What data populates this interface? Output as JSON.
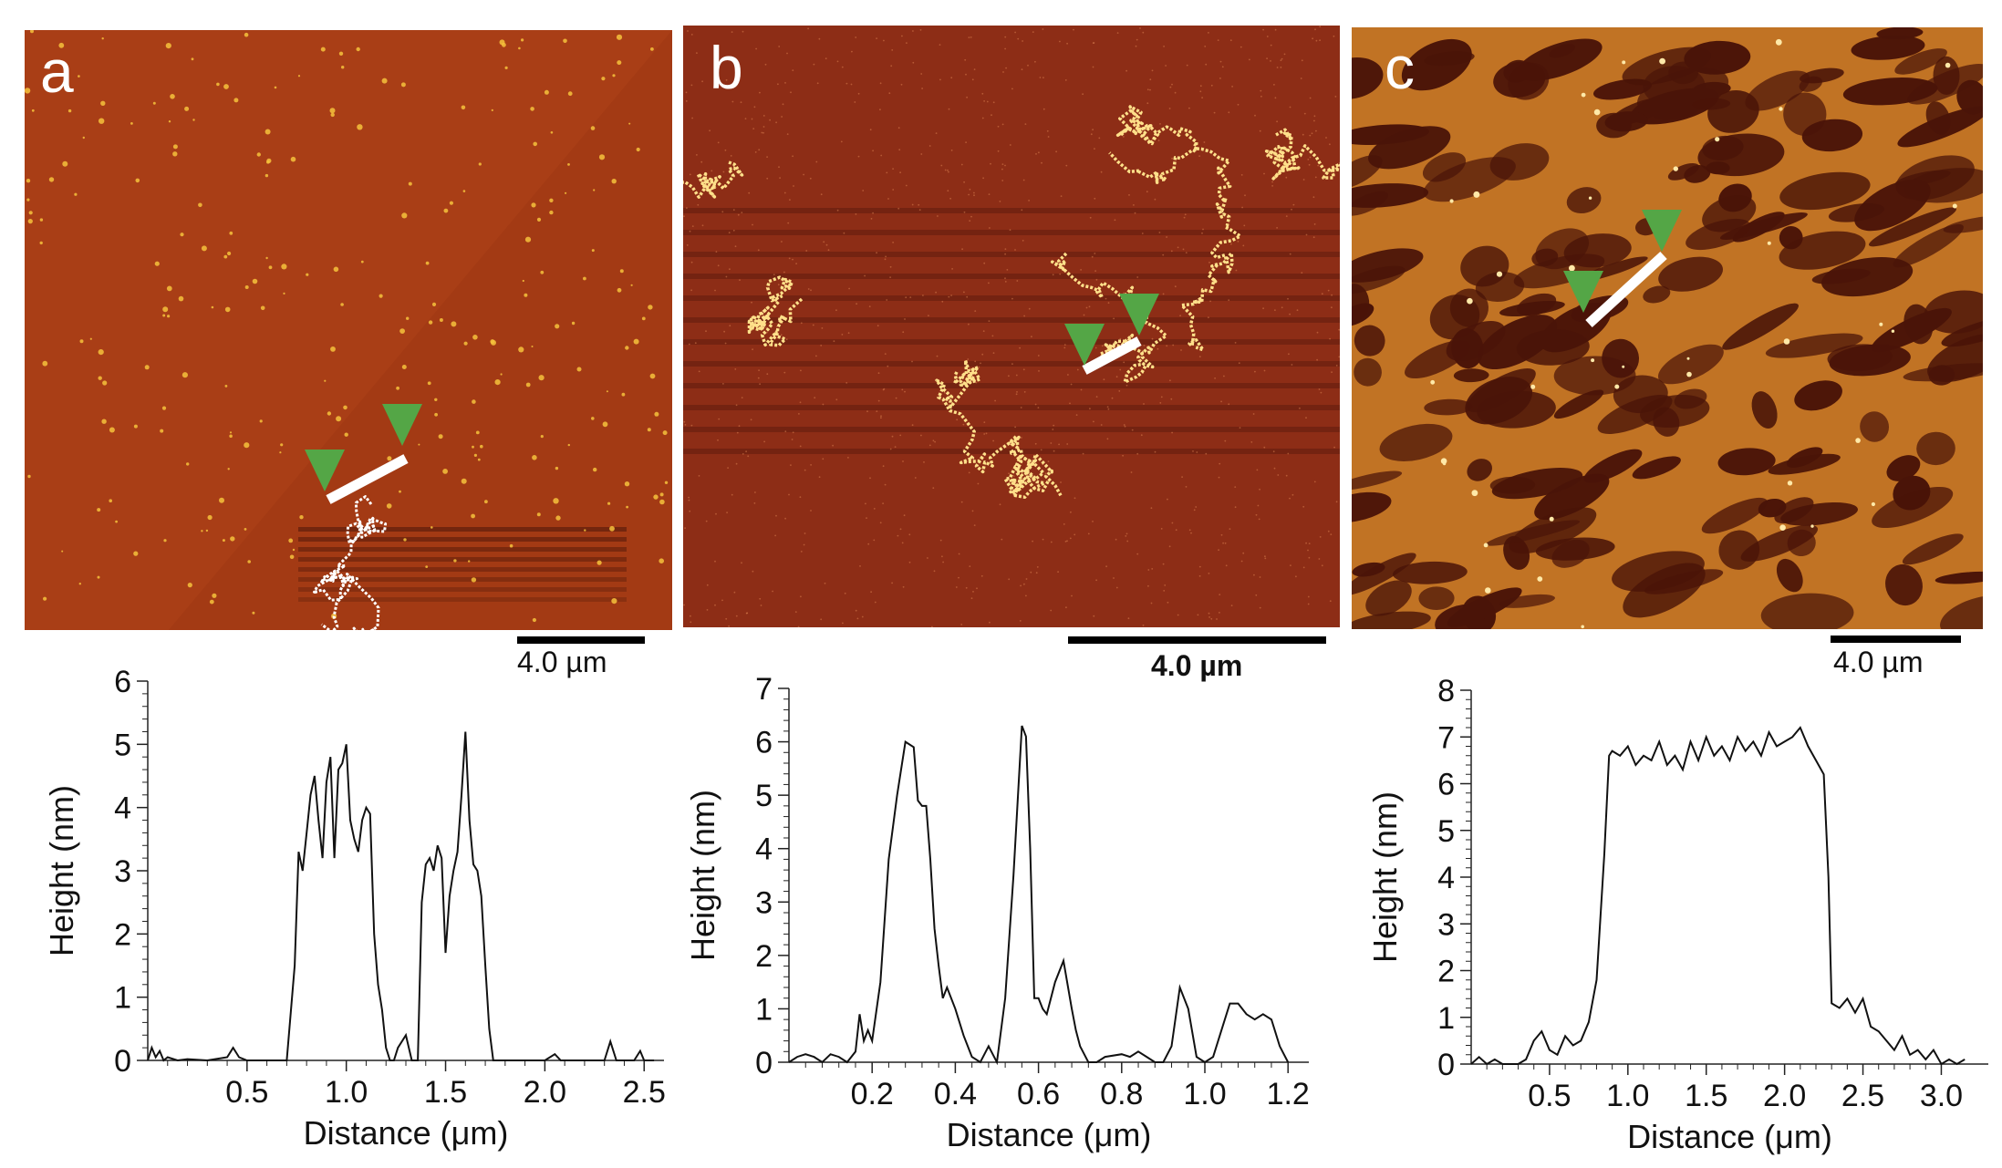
{
  "figure": {
    "panels": [
      {
        "letter": "a",
        "scale_label": "4.0 µm",
        "colors": {
          "background": "#a33a14",
          "feature": "#f6c23c",
          "marker": "#54a646",
          "line": "#ffffff"
        },
        "icons": [
          "triangle-marker-icon",
          "triangle-marker-icon"
        ]
      },
      {
        "letter": "b",
        "scale_label": "4.0 µm",
        "colors": {
          "background": "#8d2d16",
          "feature": "#ffe08a",
          "marker": "#54a646",
          "line": "#ffffff"
        },
        "icons": [
          "triangle-marker-icon",
          "triangle-marker-icon"
        ]
      },
      {
        "letter": "c",
        "scale_label": "4.0 µm",
        "colors": {
          "background": "#c17324",
          "feature": "#4a1408",
          "marker": "#54a646",
          "line": "#ffffff"
        },
        "icons": [
          "triangle-marker-icon",
          "triangle-marker-icon"
        ]
      }
    ]
  },
  "chart_data": [
    {
      "type": "line",
      "xlabel": "Distance (μm)",
      "ylabel": "Height (nm)",
      "xlim": [
        0,
        2.6
      ],
      "ylim": [
        0,
        6
      ],
      "x_ticks": [
        0.5,
        1.0,
        1.5,
        2.0,
        2.5
      ],
      "x_tick_labels": [
        "0.5",
        "1.0",
        "1.5",
        "2.0",
        "2.5"
      ],
      "y_ticks": [
        0,
        1,
        2,
        3,
        4,
        5,
        6
      ],
      "y_tick_labels": [
        "0",
        "1",
        "2",
        "3",
        "4",
        "5",
        "6"
      ],
      "grid": false,
      "series": [
        {
          "x": [
            0.0,
            0.02,
            0.04,
            0.06,
            0.08,
            0.1,
            0.15,
            0.2,
            0.3,
            0.4,
            0.43,
            0.46,
            0.5,
            0.6,
            0.7,
            0.74,
            0.76,
            0.78,
            0.8,
            0.82,
            0.84,
            0.86,
            0.88,
            0.9,
            0.92,
            0.94,
            0.96,
            0.98,
            1.0,
            1.02,
            1.04,
            1.06,
            1.08,
            1.1,
            1.12,
            1.14,
            1.16,
            1.18,
            1.2,
            1.22,
            1.24,
            1.26,
            1.3,
            1.33,
            1.36,
            1.38,
            1.4,
            1.42,
            1.44,
            1.46,
            1.48,
            1.5,
            1.52,
            1.54,
            1.56,
            1.58,
            1.6,
            1.62,
            1.64,
            1.66,
            1.68,
            1.7,
            1.72,
            1.74,
            1.76,
            1.8,
            2.0,
            2.05,
            2.08,
            2.2,
            2.3,
            2.33,
            2.36,
            2.45,
            2.48,
            2.5,
            2.55
          ],
          "y": [
            0.0,
            0.2,
            0.05,
            0.15,
            0.0,
            0.05,
            0.0,
            0.02,
            0.0,
            0.05,
            0.2,
            0.05,
            0.0,
            0.0,
            0.0,
            1.5,
            3.3,
            3.0,
            3.6,
            4.2,
            4.5,
            3.8,
            3.2,
            4.4,
            4.8,
            3.2,
            4.6,
            4.7,
            5.0,
            3.8,
            3.5,
            3.3,
            3.8,
            4.0,
            3.9,
            2.0,
            1.2,
            0.8,
            0.2,
            0.0,
            0.0,
            0.2,
            0.4,
            0.0,
            0.0,
            2.5,
            3.1,
            3.2,
            3.0,
            3.4,
            3.2,
            1.7,
            2.6,
            3.0,
            3.3,
            4.2,
            5.2,
            3.8,
            3.1,
            3.0,
            2.6,
            1.5,
            0.5,
            0.0,
            0.0,
            0.0,
            0.0,
            0.1,
            0.0,
            0.0,
            0.0,
            0.3,
            0.0,
            0.0,
            0.15,
            0.0,
            0.0
          ]
        }
      ]
    },
    {
      "type": "line",
      "xlabel": "Distance (μm)",
      "ylabel": "Height (nm)",
      "xlim": [
        0,
        1.25
      ],
      "ylim": [
        0,
        7
      ],
      "x_ticks": [
        0.2,
        0.4,
        0.6,
        0.8,
        1.0,
        1.2
      ],
      "x_tick_labels": [
        "0.2",
        "0.4",
        "0.6",
        "0.8",
        "1.0",
        "1.2"
      ],
      "y_ticks": [
        0,
        1,
        2,
        3,
        4,
        5,
        6,
        7
      ],
      "y_tick_labels": [
        "0",
        "1",
        "2",
        "3",
        "4",
        "5",
        "6",
        "7"
      ],
      "grid": false,
      "series": [
        {
          "x": [
            0.0,
            0.02,
            0.04,
            0.06,
            0.08,
            0.1,
            0.12,
            0.14,
            0.16,
            0.17,
            0.18,
            0.19,
            0.2,
            0.22,
            0.24,
            0.26,
            0.28,
            0.3,
            0.31,
            0.32,
            0.33,
            0.34,
            0.35,
            0.36,
            0.37,
            0.38,
            0.4,
            0.42,
            0.44,
            0.46,
            0.48,
            0.5,
            0.52,
            0.54,
            0.56,
            0.57,
            0.58,
            0.59,
            0.6,
            0.61,
            0.62,
            0.64,
            0.66,
            0.68,
            0.69,
            0.7,
            0.72,
            0.74,
            0.76,
            0.8,
            0.82,
            0.84,
            0.86,
            0.88,
            0.9,
            0.92,
            0.94,
            0.96,
            0.98,
            1.0,
            1.02,
            1.04,
            1.06,
            1.08,
            1.1,
            1.12,
            1.14,
            1.16,
            1.18,
            1.2
          ],
          "y": [
            0.0,
            0.1,
            0.15,
            0.1,
            0.0,
            0.15,
            0.1,
            0.0,
            0.2,
            0.9,
            0.4,
            0.6,
            0.4,
            1.5,
            3.8,
            5.0,
            6.0,
            5.9,
            4.9,
            4.8,
            4.8,
            3.8,
            2.5,
            1.8,
            1.2,
            1.4,
            1.0,
            0.5,
            0.1,
            0.0,
            0.3,
            0.0,
            1.2,
            3.5,
            6.3,
            6.1,
            4.0,
            1.2,
            1.2,
            1.0,
            0.9,
            1.5,
            1.9,
            1.0,
            0.6,
            0.3,
            0.0,
            0.0,
            0.1,
            0.15,
            0.1,
            0.2,
            0.1,
            0.0,
            0.0,
            0.3,
            1.4,
            1.0,
            0.1,
            0.0,
            0.1,
            0.6,
            1.1,
            1.1,
            0.9,
            0.8,
            0.9,
            0.8,
            0.3,
            0.0
          ]
        }
      ]
    },
    {
      "type": "line",
      "xlabel": "Distance (μm)",
      "ylabel": "Height (nm)",
      "xlim": [
        0,
        3.3
      ],
      "ylim": [
        0,
        8
      ],
      "x_ticks": [
        0.5,
        1.0,
        1.5,
        2.0,
        2.5,
        3.0
      ],
      "x_tick_labels": [
        "0.5",
        "1.0",
        "1.5",
        "2.0",
        "2.5",
        "3.0"
      ],
      "y_ticks": [
        0,
        1,
        2,
        3,
        4,
        5,
        6,
        7,
        8
      ],
      "y_tick_labels": [
        "0",
        "1",
        "2",
        "3",
        "4",
        "5",
        "6",
        "7",
        "8"
      ],
      "grid": false,
      "series": [
        {
          "x": [
            0.0,
            0.05,
            0.1,
            0.15,
            0.2,
            0.25,
            0.3,
            0.35,
            0.4,
            0.45,
            0.5,
            0.55,
            0.6,
            0.65,
            0.7,
            0.75,
            0.8,
            0.85,
            0.88,
            0.9,
            0.95,
            1.0,
            1.05,
            1.1,
            1.15,
            1.2,
            1.25,
            1.3,
            1.35,
            1.4,
            1.45,
            1.5,
            1.55,
            1.6,
            1.65,
            1.7,
            1.75,
            1.8,
            1.85,
            1.9,
            1.95,
            2.0,
            2.05,
            2.1,
            2.15,
            2.2,
            2.25,
            2.28,
            2.3,
            2.35,
            2.4,
            2.45,
            2.5,
            2.55,
            2.6,
            2.65,
            2.7,
            2.75,
            2.8,
            2.85,
            2.9,
            2.95,
            3.0,
            3.05,
            3.1,
            3.15
          ],
          "y": [
            0.0,
            0.15,
            0.0,
            0.1,
            0.0,
            0.0,
            0.0,
            0.1,
            0.5,
            0.7,
            0.3,
            0.2,
            0.6,
            0.4,
            0.5,
            0.9,
            1.8,
            4.5,
            6.6,
            6.7,
            6.6,
            6.8,
            6.4,
            6.6,
            6.5,
            6.9,
            6.4,
            6.6,
            6.3,
            6.9,
            6.5,
            7.0,
            6.6,
            6.8,
            6.5,
            7.0,
            6.7,
            6.9,
            6.6,
            7.1,
            6.8,
            6.9,
            7.0,
            7.2,
            6.8,
            6.5,
            6.2,
            4.0,
            1.3,
            1.2,
            1.4,
            1.1,
            1.4,
            0.8,
            0.7,
            0.5,
            0.3,
            0.6,
            0.2,
            0.3,
            0.1,
            0.3,
            0.0,
            0.1,
            0.0,
            0.1
          ]
        }
      ]
    }
  ]
}
